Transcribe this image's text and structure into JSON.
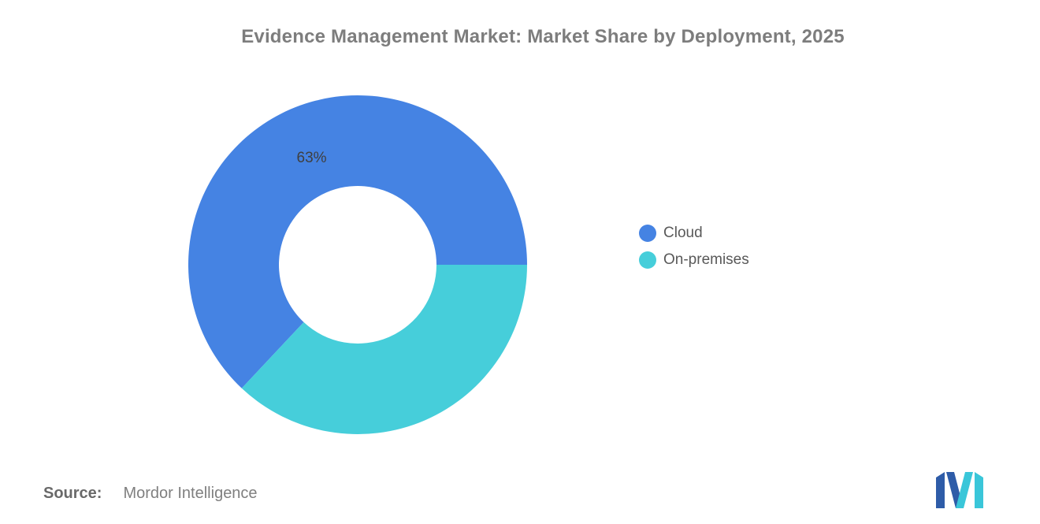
{
  "title": "Evidence Management Market: Market Share by Deployment, 2025",
  "chart_data": {
    "type": "pie",
    "subtype": "donut",
    "title": "Evidence Management Market: Market Share by Deployment, 2025",
    "categories": [
      "Cloud",
      "On-premises"
    ],
    "values": [
      63,
      37
    ],
    "colors": [
      "#4583E3",
      "#46CEDA"
    ],
    "slice_labels": [
      "63%",
      ""
    ],
    "start_angle_deg": 0,
    "direction": "counterclockwise",
    "inner_radius_ratio": 0.465,
    "legend_position": "right",
    "legend": [
      "Cloud",
      "On-premises"
    ]
  },
  "source": {
    "label": "Source:",
    "value": "Mordor Intelligence"
  },
  "logo": {
    "name": "mordor-intelligence-logo",
    "blue": "#2E5CA8",
    "teal": "#3AC6D9"
  },
  "colors": {
    "background": "#FFFFFF",
    "title_text": "#7D7D7D",
    "legend_text": "#595959",
    "slice_label_text": "#3F3F3F",
    "source_text": "#7F7F7F"
  }
}
